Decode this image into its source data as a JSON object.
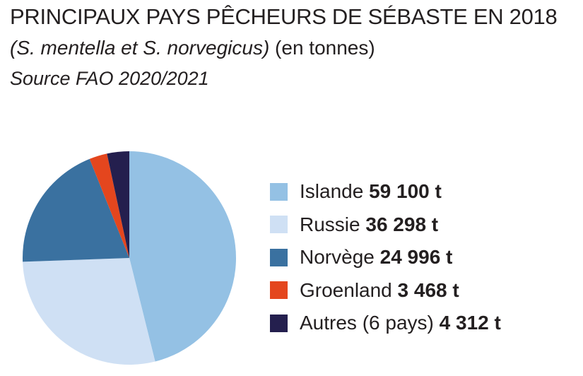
{
  "header": {
    "title": "PRINCIPAUX PAYS PÊCHEURS DE SÉBASTE EN 2018",
    "species": "(S. mentella et S. norvegicus)",
    "unit": " (en tonnes)",
    "source": "Source FAO 2020/2021"
  },
  "chart_data": {
    "type": "pie",
    "title": "PRINCIPAUX PAYS PÊCHEURS DE SÉBASTE EN 2018",
    "legend_position": "right",
    "start": "top, clockwise",
    "slices": [
      {
        "label": "Islande",
        "value": 59100,
        "value_label": "59 100 t",
        "color": "#94c1e4"
      },
      {
        "label": "Russie",
        "value": 36298,
        "value_label": "36 298 t",
        "color": "#cfe0f4"
      },
      {
        "label": "Norvège",
        "value": 24996,
        "value_label": "24 996 t",
        "color": "#3a71a0"
      },
      {
        "label": "Groenland",
        "value": 3468,
        "value_label": "3 468 t",
        "color": "#e4461e"
      },
      {
        "label": "Autres (6 pays)",
        "value": 4312,
        "value_label": "4 312 t",
        "color": "#241f4e"
      }
    ]
  }
}
